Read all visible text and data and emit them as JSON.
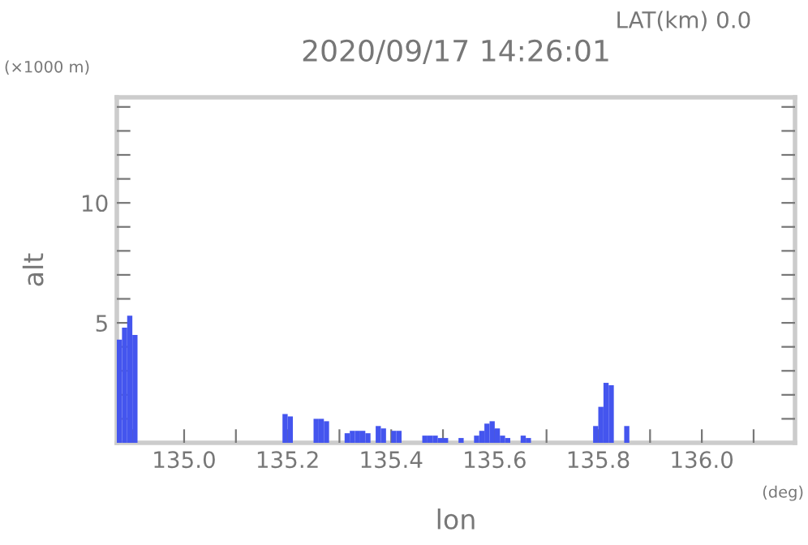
{
  "chart_data": {
    "type": "bar",
    "title": "2020/09/17 14:26:01",
    "xlabel": "lon",
    "ylabel": "alt",
    "annotations": [
      "LAT(km) 0.0",
      "(×1000 m)",
      "(deg)"
    ],
    "x": [
      134.875,
      134.885,
      134.895,
      134.905,
      135.195,
      135.205,
      135.255,
      135.265,
      135.275,
      135.315,
      135.325,
      135.335,
      135.345,
      135.355,
      135.375,
      135.385,
      135.405,
      135.415,
      135.465,
      135.475,
      135.485,
      135.495,
      135.505,
      135.535,
      135.565,
      135.575,
      135.585,
      135.595,
      135.605,
      135.615,
      135.625,
      135.655,
      135.665,
      135.795,
      135.805,
      135.815,
      135.825,
      135.855
    ],
    "series": [
      {
        "color": "#4455ee",
        "values": [
          4.3,
          4.8,
          5.3,
          4.5,
          1.2,
          1.1,
          1.0,
          1.0,
          0.9,
          0.4,
          0.5,
          0.5,
          0.5,
          0.4,
          0.7,
          0.6,
          0.5,
          0.5,
          0.3,
          0.3,
          0.3,
          0.2,
          0.2,
          0.2,
          0.3,
          0.5,
          0.8,
          0.9,
          0.6,
          0.3,
          0.2,
          0.3,
          0.2,
          0.7,
          1.5,
          2.5,
          2.4,
          0.7
        ]
      }
    ],
    "xlim": [
      134.87,
      136.18
    ],
    "ylim": [
      0,
      14.4
    ],
    "xticks": [
      {
        "value": 134.9,
        "label": null
      },
      {
        "value": 135.0,
        "label": "135.0"
      },
      {
        "value": 135.1,
        "label": null
      },
      {
        "value": 135.2,
        "label": "135.2"
      },
      {
        "value": 135.3,
        "label": null
      },
      {
        "value": 135.4,
        "label": "135.4"
      },
      {
        "value": 135.5,
        "label": null
      },
      {
        "value": 135.6,
        "label": "135.6"
      },
      {
        "value": 135.7,
        "label": null
      },
      {
        "value": 135.8,
        "label": "135.8"
      },
      {
        "value": 135.9,
        "label": null
      },
      {
        "value": 136.0,
        "label": "136.0"
      },
      {
        "value": 136.1,
        "label": null
      }
    ],
    "yticks": [
      {
        "value": 1,
        "label": null
      },
      {
        "value": 2,
        "label": null
      },
      {
        "value": 3,
        "label": null
      },
      {
        "value": 4,
        "label": null
      },
      5,
      {
        "value": 6,
        "label": null
      },
      {
        "value": 7,
        "label": null
      },
      {
        "value": 8,
        "label": null
      },
      {
        "value": 9,
        "label": null
      },
      10,
      {
        "value": 11,
        "label": null
      },
      {
        "value": 12,
        "label": null
      },
      {
        "value": 13,
        "label": null
      },
      {
        "value": 14,
        "label": null
      }
    ],
    "grid": false,
    "legend": false
  }
}
